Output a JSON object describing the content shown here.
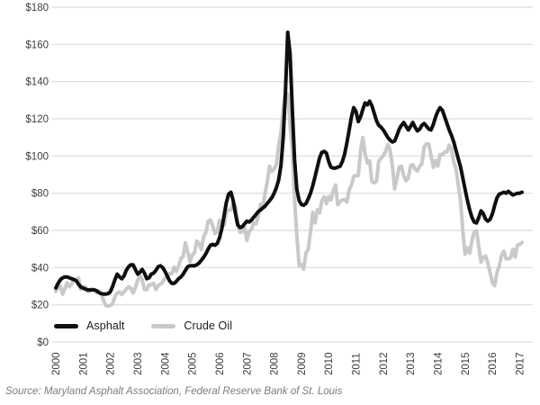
{
  "chart_data": {
    "type": "line",
    "title": "",
    "x_unit": "month",
    "x_start": "2000-01",
    "x_end": "2017-02",
    "grid": "horizontal",
    "legend_position": "bottom-left-inside",
    "y_axis": {
      "min": 0,
      "max": 180,
      "tick_step": 20,
      "tick_values": [
        0,
        20,
        40,
        60,
        80,
        100,
        120,
        140,
        160,
        180
      ],
      "tick_labels": [
        "$0",
        "$20",
        "$40",
        "$60",
        "$80",
        "$100",
        "$120",
        "$140",
        "$160",
        "$180"
      ]
    },
    "x_ticks": [
      "2000",
      "2001",
      "2002",
      "2003",
      "2004",
      "2005",
      "2006",
      "2007",
      "2008",
      "2009",
      "2010",
      "2011",
      "2012",
      "2013",
      "2014",
      "2015",
      "2016",
      "2017"
    ],
    "series": [
      {
        "name": "Asphalt",
        "color": "#0f0f0f",
        "stroke_width": 4,
        "values": [
          29,
          31.5,
          33.5,
          34.5,
          35,
          35,
          34.5,
          34,
          33.5,
          33,
          31,
          29.5,
          29,
          28.5,
          28,
          28,
          28,
          28,
          27.5,
          26.5,
          26,
          25.8,
          25.8,
          26,
          27,
          30,
          33.5,
          36.5,
          35,
          34,
          35.5,
          38.5,
          40.5,
          41.5,
          41.5,
          39,
          36.5,
          37.5,
          39,
          37,
          34,
          34.5,
          36.5,
          37,
          38.5,
          40.5,
          41,
          40,
          38,
          35.5,
          33,
          31.5,
          31.5,
          32.5,
          34,
          35,
          36.5,
          38.5,
          40.5,
          41,
          41,
          41,
          41.5,
          42.5,
          44,
          45.5,
          47.5,
          50,
          52,
          52.5,
          52,
          53,
          56,
          61,
          68,
          75,
          79.5,
          80.5,
          76,
          69,
          63,
          61.5,
          62,
          63.5,
          65,
          64.5,
          65.5,
          67,
          68.5,
          70,
          71,
          72,
          73,
          74.5,
          76,
          77.5,
          80,
          83,
          87,
          95,
          110,
          135,
          166.5,
          155,
          125,
          98,
          82,
          76,
          74,
          73.5,
          74.5,
          77,
          80,
          84,
          89,
          94,
          99,
          102,
          102.5,
          101.5,
          97,
          94,
          93.5,
          93.5,
          94,
          94.5,
          97,
          101,
          107,
          114,
          121,
          126,
          124,
          118.5,
          121,
          125,
          128.5,
          127.5,
          129.5,
          127,
          123,
          119,
          116.5,
          115.5,
          114,
          112,
          110,
          108.5,
          107.5,
          108,
          111,
          114.5,
          116.5,
          118,
          116,
          114,
          116,
          118,
          115.5,
          113.5,
          114.5,
          116.5,
          117.5,
          116,
          114.5,
          114,
          117,
          121,
          124,
          126,
          124.5,
          121,
          117.5,
          114,
          111,
          107.5,
          103,
          98.5,
          94,
          88,
          82,
          76,
          71,
          67,
          64.5,
          64,
          67,
          70.5,
          69,
          66,
          65,
          66,
          69,
          73.5,
          77.5,
          79.5,
          80,
          80.5,
          80,
          81,
          80,
          79,
          79.5,
          80,
          80,
          80.5
        ]
      },
      {
        "name": "Crude Oil",
        "color": "#c9c9c9",
        "stroke_width": 4,
        "values": [
          27.2,
          29.4,
          29.9,
          25.7,
          28.8,
          31.8,
          29.7,
          31.3,
          33.9,
          33.1,
          34.4,
          28.4,
          29.6,
          29.6,
          27.2,
          27.4,
          28.6,
          27.6,
          26.5,
          27.5,
          26.2,
          22.2,
          19.7,
          19.3,
          19.7,
          20.7,
          24.4,
          26.3,
          27,
          25.5,
          26.9,
          28.4,
          29.7,
          28.9,
          26.3,
          29.4,
          33,
          35.8,
          33.5,
          28.2,
          28.1,
          30.7,
          30.8,
          31.6,
          28.3,
          30.3,
          31.1,
          32.2,
          34.3,
          34.7,
          36.8,
          36.7,
          40.3,
          38,
          40.8,
          44.9,
          46,
          53.3,
          48.5,
          43.3,
          46.8,
          48,
          54.3,
          53,
          49.8,
          56.4,
          59,
          65,
          65.6,
          62.4,
          58.3,
          59.4,
          65.5,
          61.6,
          62.9,
          69.7,
          70.9,
          71,
          74.4,
          73.1,
          63.9,
          58.9,
          59.4,
          62,
          54.6,
          59.3,
          60.6,
          64,
          63.5,
          67.5,
          74.1,
          72.4,
          79.9,
          86.2,
          94.6,
          91.7,
          93,
          95.4,
          105.6,
          112.6,
          125.4,
          133.9,
          133.4,
          116.6,
          103.9,
          76.7,
          57.4,
          41,
          41.7,
          39.2,
          48,
          49.8,
          59.2,
          69.7,
          64.1,
          71.1,
          69.5,
          75.8,
          78.1,
          74.3,
          78.2,
          76.4,
          81.2,
          84.5,
          73.8,
          75.4,
          76.4,
          76.6,
          75.3,
          81.9,
          84.3,
          89.2,
          89.4,
          89.5,
          102.9,
          110,
          101.3,
          96.3,
          97.3,
          86.3,
          85.6,
          86.4,
          97.2,
          98.6,
          100.3,
          102.3,
          106.2,
          103.3,
          94.7,
          82.3,
          87.9,
          94.1,
          94.5,
          89.5,
          86.7,
          88.2,
          94.8,
          95.3,
          92.9,
          92,
          94.5,
          95.8,
          104.7,
          106.6,
          106.3,
          100.5,
          93.9,
          97.6,
          94.6,
          100.8,
          100.8,
          102.1,
          102.2,
          105.8,
          103.6,
          96.5,
          93.2,
          84.4,
          75.8,
          59.3,
          47.2,
          50.6,
          47.8,
          54.4,
          59.3,
          59.8,
          51.2,
          42.9,
          45.5,
          46.2,
          42.4,
          37.2,
          31.7,
          30.3,
          37.6,
          40.8,
          46.7,
          48.8,
          44.7,
          44.7,
          45.2,
          49.8,
          45.7,
          52,
          52.5,
          53.5
        ]
      }
    ]
  },
  "legend": {
    "items": [
      {
        "label": "Asphalt"
      },
      {
        "label": "Crude Oil"
      }
    ]
  },
  "source": {
    "text": "Source: Maryland Asphalt Association, Federal Reserve Bank of St. Louis"
  },
  "colors": {
    "background": "#ffffff",
    "gridline": "#dcdcdc",
    "axis_text": "#3d3d3d",
    "source_text": "#7c7c7c",
    "asphalt_line": "#0f0f0f",
    "crude_line": "#c9c9c9"
  }
}
